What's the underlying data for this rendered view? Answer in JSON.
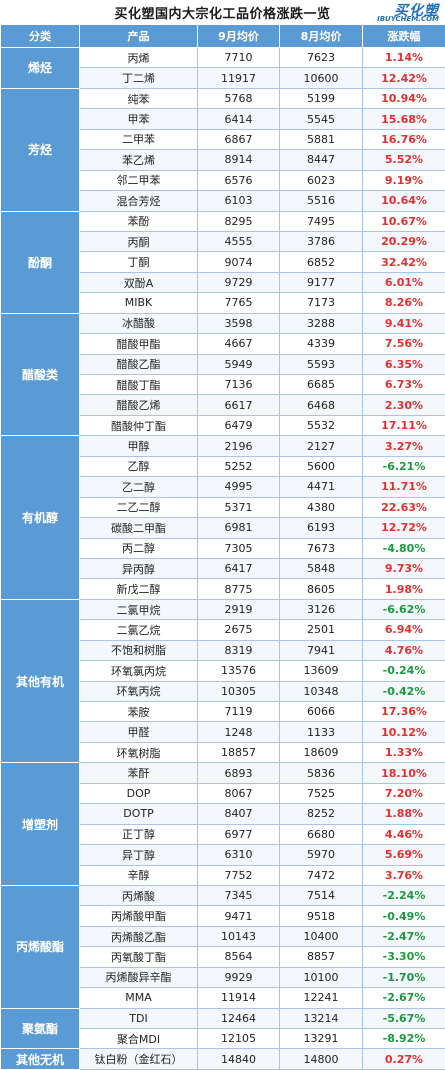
{
  "title": "买化塑国内大宗化工品价格涨跌一览",
  "logo": {
    "main": "买化塑",
    "sub": "IBUYCHEM.COM"
  },
  "headers": [
    "分类",
    "产品",
    "9月均价",
    "8月均价",
    "涨跌幅"
  ],
  "groups": [
    {
      "category": "烯烃",
      "rows": [
        {
          "product": "丙烯",
          "sep": "7710",
          "aug": "7623",
          "change": "1.14%"
        },
        {
          "product": "丁二烯",
          "sep": "11917",
          "aug": "10600",
          "change": "12.42%"
        }
      ]
    },
    {
      "category": "芳烃",
      "rows": [
        {
          "product": "纯苯",
          "sep": "5768",
          "aug": "5199",
          "change": "10.94%"
        },
        {
          "product": "甲苯",
          "sep": "6414",
          "aug": "5545",
          "change": "15.68%"
        },
        {
          "product": "二甲苯",
          "sep": "6867",
          "aug": "5881",
          "change": "16.76%"
        },
        {
          "product": "苯乙烯",
          "sep": "8914",
          "aug": "8447",
          "change": "5.52%"
        },
        {
          "product": "邻二甲苯",
          "sep": "6576",
          "aug": "6023",
          "change": "9.19%"
        },
        {
          "product": "混合芳烃",
          "sep": "6103",
          "aug": "5516",
          "change": "10.64%"
        }
      ]
    },
    {
      "category": "酚酮",
      "rows": [
        {
          "product": "苯酚",
          "sep": "8295",
          "aug": "7495",
          "change": "10.67%"
        },
        {
          "product": "丙酮",
          "sep": "4555",
          "aug": "3786",
          "change": "20.29%"
        },
        {
          "product": "丁酮",
          "sep": "9074",
          "aug": "6852",
          "change": "32.42%"
        },
        {
          "product": "双酚A",
          "sep": "9729",
          "aug": "9177",
          "change": "6.01%"
        },
        {
          "product": "MIBK",
          "sep": "7765",
          "aug": "7173",
          "change": "8.26%"
        }
      ]
    },
    {
      "category": "醋酸类",
      "rows": [
        {
          "product": "冰醋酸",
          "sep": "3598",
          "aug": "3288",
          "change": "9.41%"
        },
        {
          "product": "醋酸甲酯",
          "sep": "4667",
          "aug": "4339",
          "change": "7.56%"
        },
        {
          "product": "醋酸乙酯",
          "sep": "5949",
          "aug": "5593",
          "change": "6.35%"
        },
        {
          "product": "醋酸丁酯",
          "sep": "7136",
          "aug": "6685",
          "change": "6.73%"
        },
        {
          "product": "醋酸乙烯",
          "sep": "6617",
          "aug": "6468",
          "change": "2.30%"
        },
        {
          "product": "醋酸仲丁酯",
          "sep": "6479",
          "aug": "5532",
          "change": "17.11%"
        }
      ]
    },
    {
      "category": "有机醇",
      "rows": [
        {
          "product": "甲醇",
          "sep": "2196",
          "aug": "2127",
          "change": "3.27%"
        },
        {
          "product": "乙醇",
          "sep": "5252",
          "aug": "5600",
          "change": "-6.21%"
        },
        {
          "product": "乙二醇",
          "sep": "4995",
          "aug": "4471",
          "change": "11.71%"
        },
        {
          "product": "二乙二醇",
          "sep": "5371",
          "aug": "4380",
          "change": "22.63%"
        },
        {
          "product": "碳酸二甲酯",
          "sep": "6981",
          "aug": "6193",
          "change": "12.72%"
        },
        {
          "product": "丙二醇",
          "sep": "7305",
          "aug": "7673",
          "change": "-4.80%"
        },
        {
          "product": "异丙醇",
          "sep": "6417",
          "aug": "5848",
          "change": "9.73%"
        },
        {
          "product": "新戊二醇",
          "sep": "8775",
          "aug": "8605",
          "change": "1.98%"
        }
      ]
    },
    {
      "category": "其他有机",
      "rows": [
        {
          "product": "二氯甲烷",
          "sep": "2919",
          "aug": "3126",
          "change": "-6.62%"
        },
        {
          "product": "二氯乙烷",
          "sep": "2675",
          "aug": "2501",
          "change": "6.94%"
        },
        {
          "product": "不饱和树脂",
          "sep": "8319",
          "aug": "7941",
          "change": "4.76%"
        },
        {
          "product": "环氧氯丙烷",
          "sep": "13576",
          "aug": "13609",
          "change": "-0.24%"
        },
        {
          "product": "环氧丙烷",
          "sep": "10305",
          "aug": "10348",
          "change": "-0.42%"
        },
        {
          "product": "苯胺",
          "sep": "7119",
          "aug": "6066",
          "change": "17.36%"
        },
        {
          "product": "甲醛",
          "sep": "1248",
          "aug": "1133",
          "change": "10.12%"
        },
        {
          "product": "环氧树脂",
          "sep": "18857",
          "aug": "18609",
          "change": "1.33%"
        }
      ]
    },
    {
      "category": "增塑剂",
      "rows": [
        {
          "product": "苯酐",
          "sep": "6893",
          "aug": "5836",
          "change": "18.10%"
        },
        {
          "product": "DOP",
          "sep": "8067",
          "aug": "7525",
          "change": "7.20%"
        },
        {
          "product": "DOTP",
          "sep": "8407",
          "aug": "8252",
          "change": "1.88%"
        },
        {
          "product": "正丁醇",
          "sep": "6977",
          "aug": "6680",
          "change": "4.46%"
        },
        {
          "product": "异丁醇",
          "sep": "6310",
          "aug": "5970",
          "change": "5.69%"
        },
        {
          "product": "辛醇",
          "sep": "7752",
          "aug": "7472",
          "change": "3.76%"
        }
      ]
    },
    {
      "category": "丙烯酸酯",
      "rows": [
        {
          "product": "丙烯酸",
          "sep": "7345",
          "aug": "7514",
          "change": "-2.24%"
        },
        {
          "product": "丙烯酸甲酯",
          "sep": "9471",
          "aug": "9518",
          "change": "-0.49%"
        },
        {
          "product": "丙烯酸乙酯",
          "sep": "10143",
          "aug": "10400",
          "change": "-2.47%"
        },
        {
          "product": "丙氧酸丁酯",
          "sep": "8564",
          "aug": "8857",
          "change": "-3.30%"
        },
        {
          "product": "丙烯酸异辛酯",
          "sep": "9929",
          "aug": "10100",
          "change": "-1.70%"
        },
        {
          "product": "MMA",
          "sep": "11914",
          "aug": "12241",
          "change": "-2.67%"
        }
      ]
    },
    {
      "category": "聚氨酯",
      "rows": [
        {
          "product": "TDI",
          "sep": "12464",
          "aug": "13214",
          "change": "-5.67%"
        },
        {
          "product": "聚合MDI",
          "sep": "12105",
          "aug": "13291",
          "change": "-8.92%"
        }
      ]
    },
    {
      "category": "其他无机",
      "rows": [
        {
          "product": "钛白粉（金红石）",
          "sep": "14840",
          "aug": "14800",
          "change": "0.27%"
        }
      ]
    }
  ],
  "colors": {
    "header_bg": "#5b9bd5",
    "up": "#e03030",
    "down": "#1a9a3c",
    "logo": "#1f6fbf"
  }
}
